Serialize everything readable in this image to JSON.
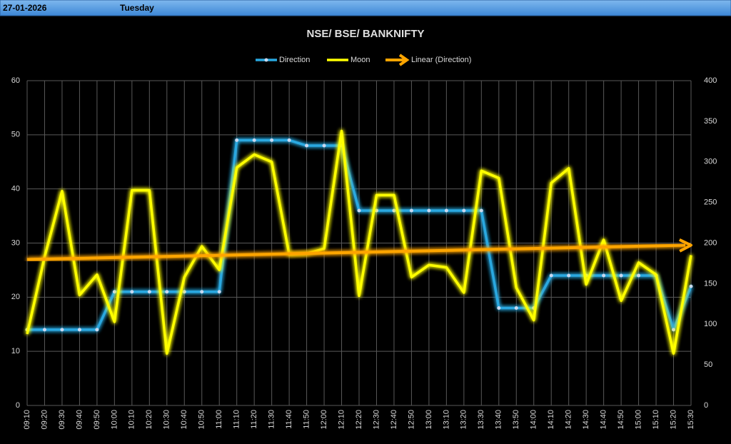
{
  "header": {
    "date": "27-01-2026",
    "day": "Tuesday"
  },
  "chart_data": {
    "type": "line",
    "title": "NSE/ BSE/ BANKNIFTY",
    "categories": [
      "09:10",
      "09:20",
      "09:30",
      "09:40",
      "09:50",
      "10:00",
      "10:10",
      "10:20",
      "10:30",
      "10:40",
      "10:50",
      "11:00",
      "11:10",
      "11:20",
      "11:30",
      "11:40",
      "11:50",
      "12:00",
      "12:10",
      "12:20",
      "12:30",
      "12:40",
      "12:50",
      "13:00",
      "13:10",
      "13:20",
      "13:30",
      "13:40",
      "13:50",
      "14:00",
      "14:10",
      "14:20",
      "14:30",
      "14:40",
      "14:50",
      "15:00",
      "15:10",
      "15:20",
      "15:30"
    ],
    "series": [
      {
        "name": "Direction",
        "color": "#29a8e0",
        "axis": "y",
        "markers": true,
        "values": [
          14,
          14,
          14,
          14,
          14,
          21,
          21,
          21,
          21,
          21,
          21,
          21,
          49,
          49,
          49,
          49,
          48,
          48,
          48,
          36,
          36,
          36,
          36,
          36,
          36,
          36,
          36,
          18,
          18,
          18,
          24,
          24,
          24,
          24,
          24,
          24,
          24,
          14,
          22
        ]
      },
      {
        "name": "Moon",
        "color": "#ffff00",
        "axis": "y2",
        "markers": false,
        "values": [
          88,
          183,
          264,
          136,
          161,
          103,
          265,
          265,
          64,
          158,
          196,
          167,
          293,
          309,
          300,
          186,
          187,
          193,
          338,
          135,
          259,
          259,
          158,
          173,
          170,
          139,
          289,
          280,
          145,
          105,
          274,
          292,
          149,
          204,
          129,
          176,
          161,
          64,
          185
        ]
      }
    ],
    "trendline": {
      "name": "Linear (Direction)",
      "of": "Direction",
      "color": "#ffa500"
    },
    "ylim": [
      0,
      60
    ],
    "yticks": [
      0,
      10,
      20,
      30,
      40,
      50,
      60
    ],
    "y2lim": [
      0,
      400
    ],
    "y2ticks": [
      0,
      50,
      100,
      150,
      200,
      250,
      300,
      350,
      400
    ],
    "grid": true
  }
}
